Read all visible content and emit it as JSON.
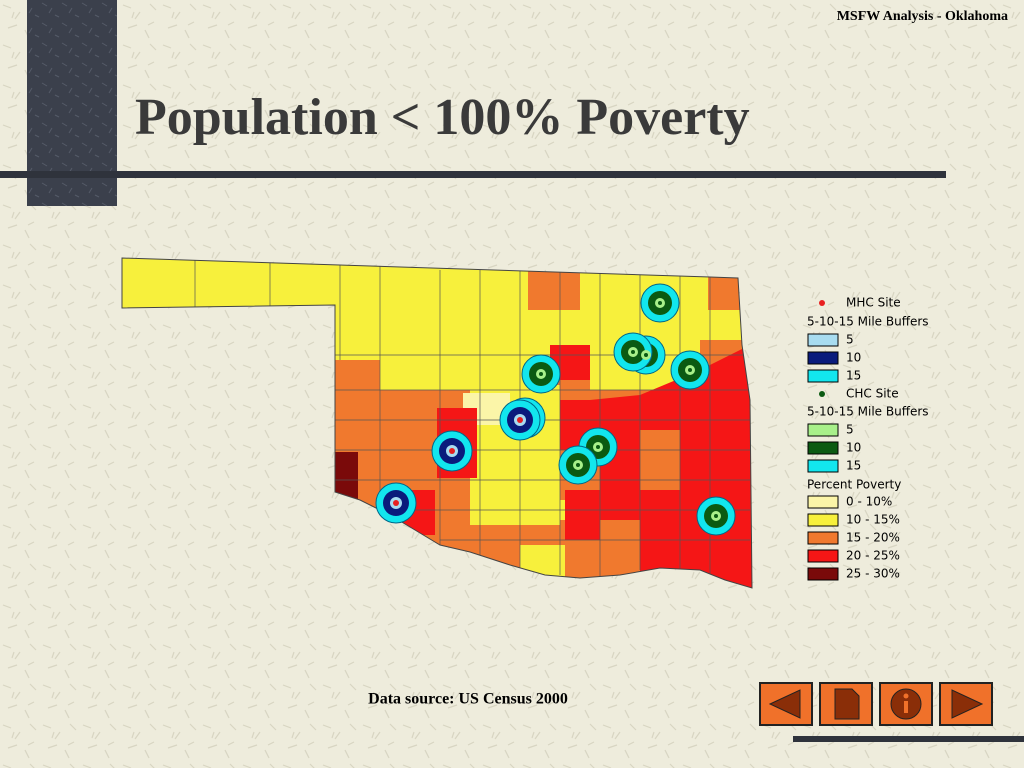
{
  "header": {
    "tag": "MSFW Analysis - Oklahoma",
    "title": "Population < 100% Poverty"
  },
  "legend": {
    "mhc_site": "MHC Site",
    "mhc_buffers": "5-10-15 Mile Buffers",
    "mhc_buffer_items": [
      "5",
      "10",
      "15"
    ],
    "chc_site": "CHC Site",
    "chc_buffers": "5-10-15 Mile Buffers",
    "chc_buffer_items": [
      "5",
      "10",
      "15"
    ],
    "poverty_title": "Percent Poverty",
    "poverty_items": [
      "0 - 10%",
      "10 - 15%",
      "15 - 20%",
      "20 - 25%",
      "25 - 30%"
    ]
  },
  "footer": {
    "source": "Data source: US Census 2000"
  }
}
